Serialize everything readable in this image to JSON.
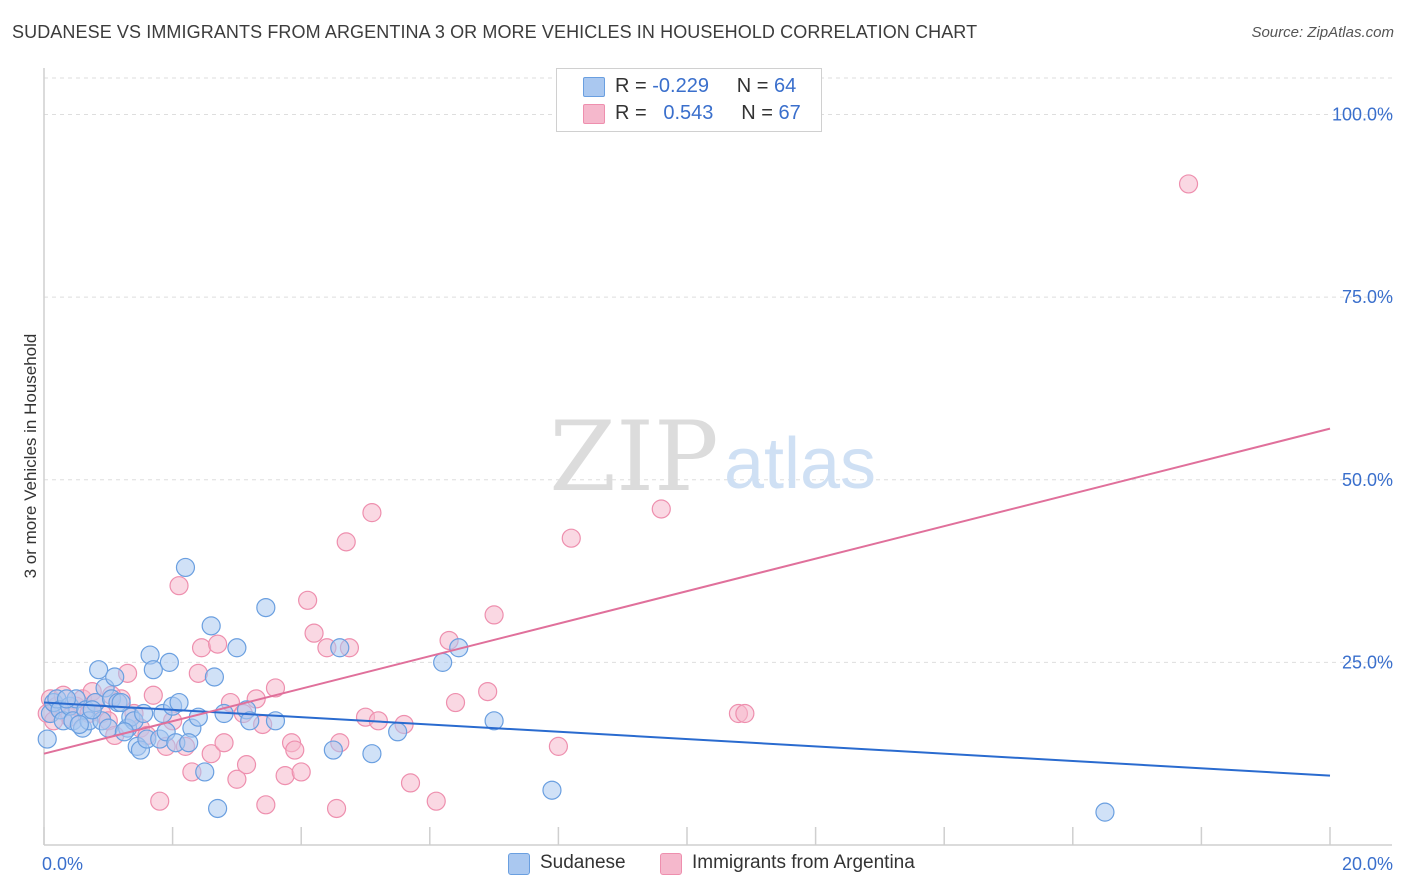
{
  "title": "SUDANESE VS IMMIGRANTS FROM ARGENTINA 3 OR MORE VEHICLES IN HOUSEHOLD CORRELATION CHART",
  "source": "Source: ZipAtlas.com",
  "watermark": {
    "zip": "ZIP",
    "atlas": "atlas"
  },
  "legend": {
    "rows": [
      {
        "r_label": "R =",
        "r_value": "-0.229",
        "n_label": "N =",
        "n_value": "64",
        "color": "#aac8f0"
      },
      {
        "r_label": "R =",
        "r_value": "0.543",
        "n_label": "N =",
        "n_value": "67",
        "color": "#f5b8cc"
      }
    ]
  },
  "bottom_legend": [
    {
      "label": "Sudanese",
      "color": "#aac8f0"
    },
    {
      "label": "Immigrants from Argentina",
      "color": "#f5b8cc"
    }
  ],
  "chart_data": {
    "type": "scatter",
    "title": "SUDANESE VS IMMIGRANTS FROM ARGENTINA 3 OR MORE VEHICLES IN HOUSEHOLD CORRELATION CHART",
    "xlabel": "",
    "ylabel": "3 or more Vehicles in Household",
    "xlim": [
      0,
      20
    ],
    "ylim": [
      0,
      105
    ],
    "x_tick_labels": [
      {
        "value": 0,
        "label": "0.0%"
      },
      {
        "value": 20,
        "label": "20.0%"
      }
    ],
    "y_tick_labels": [
      {
        "value": 25,
        "label": "25.0%"
      },
      {
        "value": 50,
        "label": "50.0%"
      },
      {
        "value": 75,
        "label": "75.0%"
      },
      {
        "value": 100,
        "label": "100.0%"
      }
    ],
    "series": [
      {
        "name": "Sudanese",
        "color": "#6a9fe0",
        "fill": "#aac8f0",
        "trend": {
          "x": [
            0,
            20
          ],
          "y": [
            19.5,
            9.5
          ],
          "color": "#2a6bcf"
        },
        "points": [
          [
            0.05,
            14.5
          ],
          [
            0.1,
            18
          ],
          [
            0.15,
            19.5
          ],
          [
            0.2,
            20
          ],
          [
            0.25,
            18.5
          ],
          [
            0.3,
            17
          ],
          [
            0.4,
            19
          ],
          [
            0.45,
            17
          ],
          [
            0.5,
            20
          ],
          [
            0.6,
            16
          ],
          [
            0.65,
            18.5
          ],
          [
            0.7,
            17
          ],
          [
            0.8,
            19.5
          ],
          [
            0.85,
            24
          ],
          [
            0.9,
            17
          ],
          [
            0.95,
            21.5
          ],
          [
            1.0,
            16
          ],
          [
            1.05,
            20
          ],
          [
            1.1,
            23
          ],
          [
            1.15,
            19.5
          ],
          [
            1.2,
            19.5
          ],
          [
            1.3,
            16
          ],
          [
            1.35,
            17.5
          ],
          [
            1.4,
            17
          ],
          [
            1.45,
            13.5
          ],
          [
            1.5,
            13
          ],
          [
            1.55,
            18
          ],
          [
            1.6,
            14.5
          ],
          [
            1.65,
            26
          ],
          [
            1.7,
            24
          ],
          [
            1.8,
            14.5
          ],
          [
            1.85,
            18
          ],
          [
            1.9,
            15.5
          ],
          [
            1.95,
            25
          ],
          [
            2.0,
            19
          ],
          [
            2.05,
            14
          ],
          [
            2.1,
            19.5
          ],
          [
            2.2,
            38
          ],
          [
            2.3,
            16
          ],
          [
            2.4,
            17.5
          ],
          [
            2.5,
            10
          ],
          [
            2.6,
            30
          ],
          [
            2.65,
            23
          ],
          [
            2.7,
            5
          ],
          [
            2.8,
            18
          ],
          [
            3.0,
            27
          ],
          [
            3.15,
            18.5
          ],
          [
            3.2,
            17
          ],
          [
            3.45,
            32.5
          ],
          [
            3.6,
            17
          ],
          [
            4.5,
            13
          ],
          [
            4.6,
            27
          ],
          [
            5.1,
            12.5
          ],
          [
            5.5,
            15.5
          ],
          [
            6.2,
            25
          ],
          [
            6.45,
            27
          ],
          [
            7.0,
            17
          ],
          [
            7.9,
            7.5
          ],
          [
            16.5,
            4.5
          ],
          [
            0.35,
            20
          ],
          [
            0.55,
            16.5
          ],
          [
            1.25,
            15.5
          ],
          [
            2.25,
            14
          ],
          [
            0.75,
            18.5
          ]
        ]
      },
      {
        "name": "Immigrants from Argentina",
        "color": "#ee8fae",
        "fill": "#f5b8cc",
        "trend": {
          "x": [
            0,
            20
          ],
          "y": [
            12.5,
            57
          ],
          "color": "#e0709b"
        },
        "points": [
          [
            0.05,
            18
          ],
          [
            0.1,
            20
          ],
          [
            0.2,
            19
          ],
          [
            0.3,
            20.5
          ],
          [
            0.4,
            17.5
          ],
          [
            0.5,
            19
          ],
          [
            0.6,
            20
          ],
          [
            0.7,
            18
          ],
          [
            0.75,
            21
          ],
          [
            0.8,
            19.5
          ],
          [
            0.9,
            18
          ],
          [
            1.0,
            17
          ],
          [
            1.1,
            15
          ],
          [
            1.2,
            20
          ],
          [
            1.3,
            23.5
          ],
          [
            1.4,
            18
          ],
          [
            1.5,
            16
          ],
          [
            1.6,
            15
          ],
          [
            1.7,
            20.5
          ],
          [
            1.8,
            6
          ],
          [
            1.9,
            13.5
          ],
          [
            2.0,
            17
          ],
          [
            2.1,
            35.5
          ],
          [
            2.2,
            13.5
          ],
          [
            2.3,
            10
          ],
          [
            2.4,
            23.5
          ],
          [
            2.45,
            27
          ],
          [
            2.6,
            12.5
          ],
          [
            2.7,
            27.5
          ],
          [
            2.8,
            14
          ],
          [
            2.9,
            19.5
          ],
          [
            3.0,
            9
          ],
          [
            3.1,
            18
          ],
          [
            3.15,
            11
          ],
          [
            3.3,
            20
          ],
          [
            3.4,
            16.5
          ],
          [
            3.45,
            5.5
          ],
          [
            3.6,
            21.5
          ],
          [
            3.75,
            9.5
          ],
          [
            3.85,
            14
          ],
          [
            3.9,
            13
          ],
          [
            4.0,
            10
          ],
          [
            4.1,
            33.5
          ],
          [
            4.2,
            29
          ],
          [
            4.4,
            27
          ],
          [
            4.55,
            5
          ],
          [
            4.6,
            14
          ],
          [
            4.7,
            41.5
          ],
          [
            4.75,
            27
          ],
          [
            5.0,
            17.5
          ],
          [
            5.1,
            45.5
          ],
          [
            5.2,
            17
          ],
          [
            5.6,
            16.5
          ],
          [
            5.7,
            8.5
          ],
          [
            6.1,
            6
          ],
          [
            6.3,
            28
          ],
          [
            6.4,
            19.5
          ],
          [
            6.9,
            21
          ],
          [
            7.0,
            31.5
          ],
          [
            8.0,
            13.5
          ],
          [
            8.2,
            42
          ],
          [
            9.6,
            46
          ],
          [
            10.8,
            18
          ],
          [
            10.9,
            18
          ],
          [
            17.8,
            90.5
          ],
          [
            0.15,
            17
          ],
          [
            1.05,
            20.5
          ]
        ]
      }
    ]
  }
}
